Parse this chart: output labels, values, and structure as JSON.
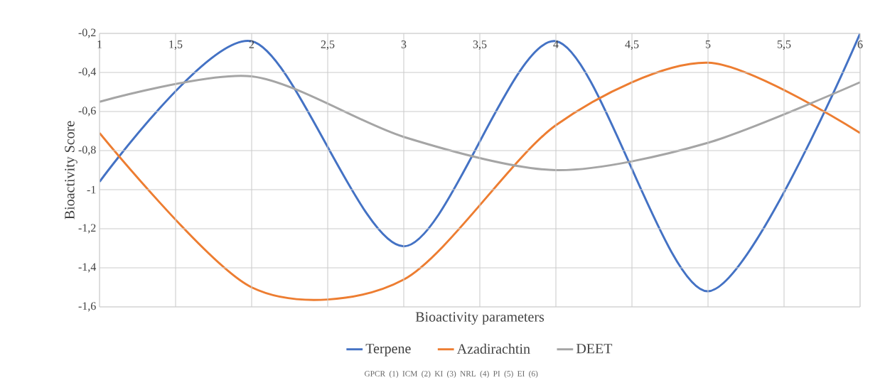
{
  "chart_data": {
    "type": "line",
    "xlabel": "Bioactivity parameters",
    "ylabel": "Bioactivity Score",
    "annotations": [
      "GPCR (1)   ICM (2)   KI (3)   NRL (4)   PI (5)   EI (6)"
    ],
    "x": [
      1,
      2,
      3,
      4,
      5,
      6
    ],
    "series": [
      {
        "name": "Terpene",
        "color": "#4472c4",
        "values": [
          -0.96,
          -0.24,
          -1.29,
          -0.24,
          -1.52,
          -0.2
        ]
      },
      {
        "name": "Azadirachtin",
        "color": "#ed7d31",
        "values": [
          -0.71,
          -1.5,
          -1.46,
          -0.67,
          -0.35,
          -0.71
        ]
      },
      {
        "name": "DEET",
        "color": "#a5a5a5",
        "values": [
          -0.55,
          -0.42,
          -0.73,
          -0.9,
          -0.76,
          -0.45
        ]
      }
    ],
    "xlim": [
      1,
      6
    ],
    "ylim": [
      -1.6,
      -0.2
    ],
    "xticks": [
      1,
      {
        "value": 1.5,
        "label": "1,5"
      },
      2,
      {
        "value": 2.5,
        "label": "2,5"
      },
      3,
      {
        "value": 3.5,
        "label": "3,5"
      },
      4,
      {
        "value": 4.5,
        "label": "4,5"
      },
      5,
      {
        "value": 5.5,
        "label": "5,5"
      },
      6
    ],
    "yticks": [
      {
        "value": -1.6,
        "label": "-1,6"
      },
      {
        "value": -1.4,
        "label": "-1,4"
      },
      {
        "value": -1.2,
        "label": "-1,2"
      },
      -1,
      {
        "value": -0.8,
        "label": "-0,8"
      },
      {
        "value": -0.6,
        "label": "-0,6"
      },
      {
        "value": -0.4,
        "label": "-0,4"
      },
      {
        "value": -0.2,
        "label": "-0,2"
      }
    ],
    "grid": true,
    "legend": "bottom",
    "marker": "none",
    "line_style": "solid"
  }
}
